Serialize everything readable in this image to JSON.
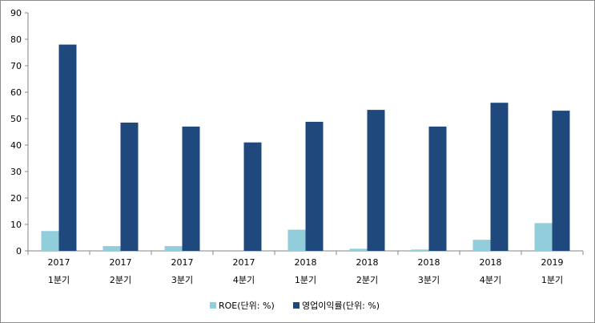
{
  "chart_data": {
    "type": "bar",
    "categories": [
      [
        "2017",
        "1분기"
      ],
      [
        "2017",
        "2분기"
      ],
      [
        "2017",
        "3분기"
      ],
      [
        "2017",
        "4분기"
      ],
      [
        "2018",
        "1분기"
      ],
      [
        "2018",
        "2분기"
      ],
      [
        "2018",
        "3분기"
      ],
      [
        "2018",
        "4분기"
      ],
      [
        "2019",
        "1분기"
      ]
    ],
    "series": [
      {
        "name": "ROE(단위: %)",
        "color": "#92cddc",
        "values": [
          7.5,
          1.8,
          1.8,
          0.0,
          8.0,
          0.8,
          0.5,
          4.2,
          10.5
        ]
      },
      {
        "name": "영업이익률(단위: %)",
        "color": "#1f497d",
        "values": [
          78,
          48.5,
          47,
          41,
          48.8,
          53.3,
          47,
          56,
          53
        ]
      }
    ],
    "ylim": [
      0,
      90
    ],
    "yticks": [
      0,
      10,
      20,
      30,
      40,
      50,
      60,
      70,
      80,
      90
    ],
    "grid": false,
    "legend_position": "bottom",
    "title": "",
    "xlabel": "",
    "ylabel": ""
  }
}
